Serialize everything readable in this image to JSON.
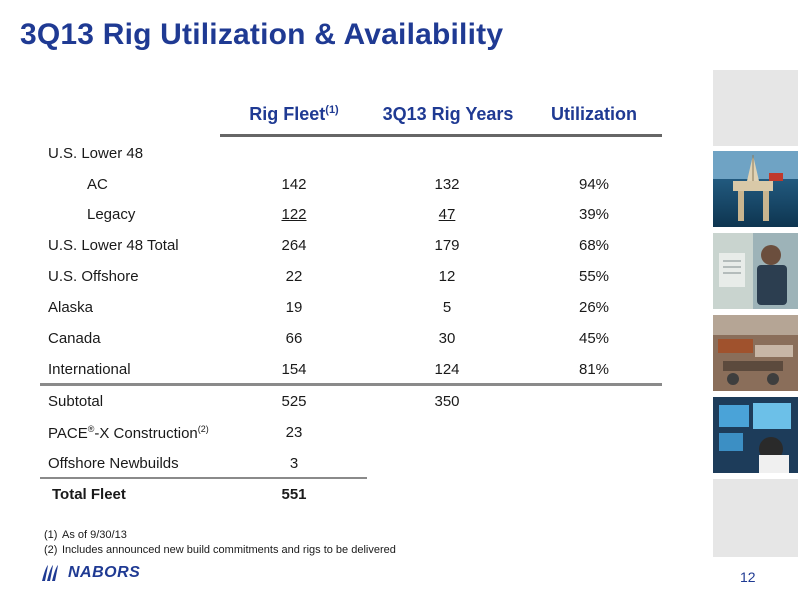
{
  "title": "3Q13 Rig Utilization & Availability",
  "columns": {
    "rig_fleet": "Rig Fleet",
    "rig_fleet_note": "(1)",
    "rig_years": "3Q13 Rig Years",
    "utilization": "Utilization"
  },
  "rows": [
    {
      "label": "U.S. Lower 48",
      "fleet": "",
      "years": "",
      "util": ""
    },
    {
      "label": "AC",
      "fleet": "142",
      "years": "132",
      "util": "94%"
    },
    {
      "label": "Legacy",
      "fleet": "122",
      "years": "47",
      "util": "39%"
    },
    {
      "label": "U.S. Lower 48 Total",
      "fleet": "264",
      "years": "179",
      "util": "68%"
    },
    {
      "label": "U.S. Offshore",
      "fleet": "22",
      "years": "12",
      "util": "55%"
    },
    {
      "label": "Alaska",
      "fleet": "19",
      "years": "5",
      "util": "26%"
    },
    {
      "label": "Canada",
      "fleet": "66",
      "years": "30",
      "util": "45%"
    },
    {
      "label": "International",
      "fleet": "154",
      "years": "124",
      "util": "81%"
    },
    {
      "label": "Subtotal",
      "fleet": "525",
      "years": "350",
      "util": ""
    },
    {
      "label": "Offshore Newbuilds",
      "fleet": "3",
      "years": "",
      "util": ""
    },
    {
      "label": "Total Fleet",
      "fleet": "551",
      "years": "",
      "util": ""
    }
  ],
  "pace_row": {
    "label_a": "PACE",
    "label_reg": "®",
    "label_b": "-X Construction",
    "label_note": "(2)",
    "fleet": "23"
  },
  "footnotes": [
    {
      "num": "(1)",
      "text": "As of 9/30/13"
    },
    {
      "num": "(2)",
      "text": "Includes announced new build commitments and rigs to be delivered"
    }
  ],
  "logo_text": "NABORS",
  "page_number": "12",
  "colors": {
    "accent": "#1f3a93",
    "rule": "#8a8a8a",
    "placeholder": "#e6e6e6"
  }
}
